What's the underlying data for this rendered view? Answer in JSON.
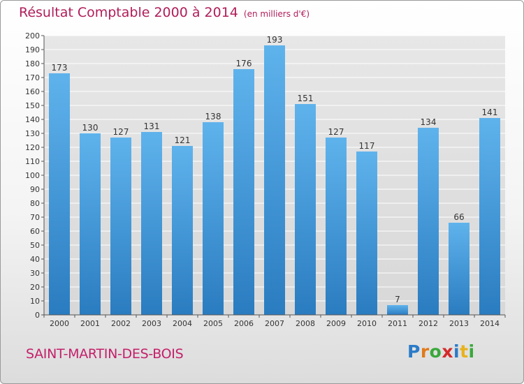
{
  "title": {
    "main": "Résultat Comptable 2000 à 2014",
    "unit": "(en milliers d'€)"
  },
  "commune": "SAINT-MARTIN-DES-BOIS",
  "logo": {
    "letters": [
      "P",
      "r",
      "o",
      "x",
      "i",
      "t",
      "i"
    ],
    "colors": [
      "#2a7bc8",
      "#e07a1c",
      "#3aa83a",
      "#d42a2a",
      "#2a7bc8",
      "#e8b21c",
      "#3aa83a"
    ]
  },
  "colors": {
    "bar_light": "#5aaee8",
    "bar_dark": "#2c7fc2",
    "title": "#b01d5a"
  },
  "chart_data": {
    "type": "bar",
    "categories": [
      "2000",
      "2001",
      "2002",
      "2003",
      "2004",
      "2005",
      "2006",
      "2007",
      "2008",
      "2009",
      "2010",
      "2011",
      "2012",
      "2013",
      "2014"
    ],
    "values": [
      173,
      130,
      127,
      131,
      121,
      138,
      176,
      193,
      151,
      127,
      117,
      7,
      134,
      66,
      141
    ],
    "ylim": [
      0,
      200
    ],
    "ytick_step": 10,
    "grid": true,
    "data_labels": true
  }
}
